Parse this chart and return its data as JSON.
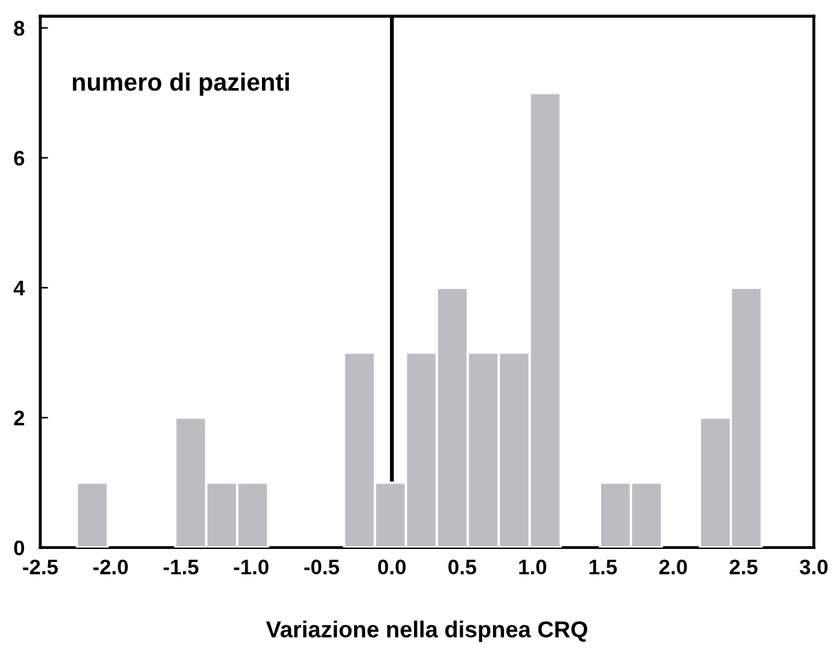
{
  "chart_data": {
    "type": "histogram",
    "bins": [
      -2.24,
      -2.02,
      -1.54,
      -1.32,
      -1.1,
      -0.88,
      -0.34,
      -0.12,
      0.1,
      0.32,
      0.54,
      0.76,
      0.98,
      1.2,
      1.48,
      1.7,
      1.92,
      2.19,
      2.41,
      2.63
    ],
    "values": [
      1,
      0,
      2,
      1,
      1,
      0,
      3,
      1,
      3,
      4,
      3,
      3,
      7,
      0,
      1,
      1,
      0,
      2,
      4
    ],
    "color": "#bcbdc1",
    "xlabel": "Variazione nella dispnea CRQ",
    "annotations": [
      "numero di pazienti"
    ],
    "xlim": [
      -2.5,
      3.0
    ],
    "xticks": [
      {
        "value": -2.5,
        "label": "-2.5"
      },
      {
        "value": -2.0,
        "label": "-2.0"
      },
      {
        "value": -1.5,
        "label": "-1.5"
      },
      {
        "value": -1.0,
        "label": "-1.0"
      },
      {
        "value": -0.5,
        "label": "-0.5"
      },
      {
        "value": 0,
        "label": "0.0"
      },
      {
        "value": 0.5,
        "label": "0.5"
      },
      {
        "value": 1.0,
        "label": "1.0"
      },
      {
        "value": 1.5,
        "label": "1.5"
      },
      {
        "value": 2.0,
        "label": "2.0"
      },
      {
        "value": 2.5,
        "label": "2.5"
      },
      {
        "value": 3.0,
        "label": "3.0"
      }
    ],
    "ylim": [
      0,
      8.18
    ],
    "yticks": [
      0,
      2,
      4,
      6,
      8
    ],
    "ref_lines": [
      {
        "axis": "x",
        "value": 0,
        "color": "#000000"
      }
    ],
    "grid": false,
    "legend": false
  }
}
